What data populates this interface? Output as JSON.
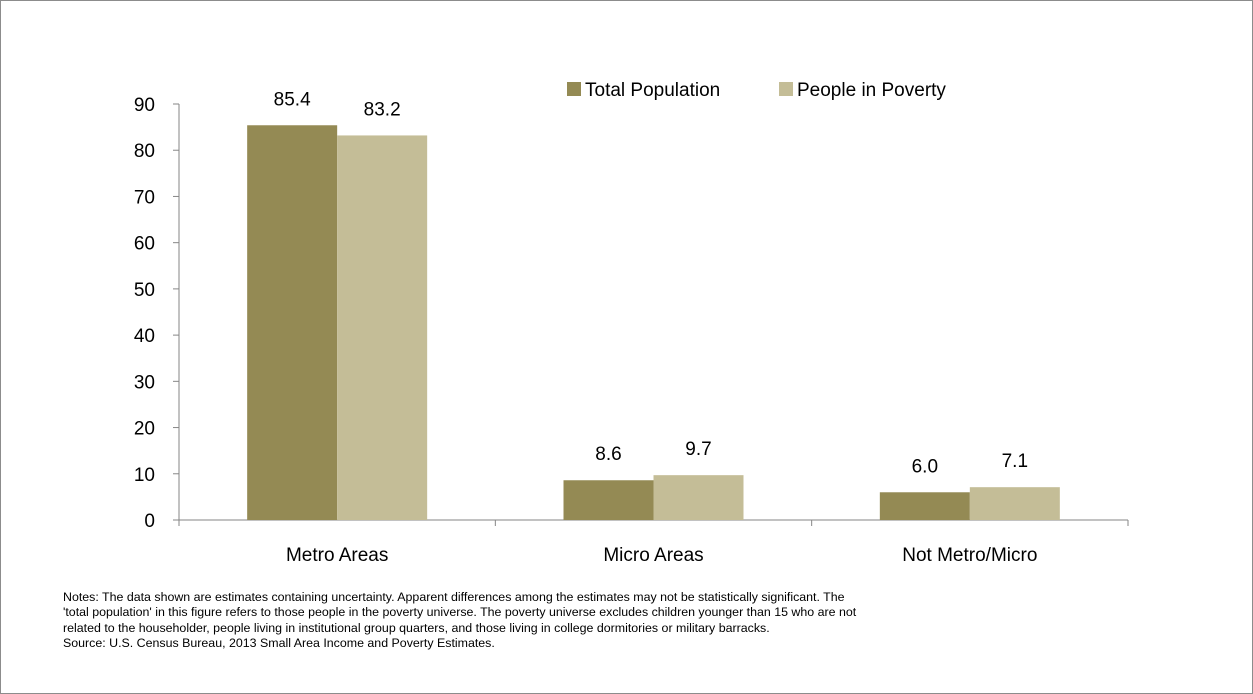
{
  "chart_data": {
    "type": "bar",
    "categories": [
      "Metro Areas",
      "Micro Areas",
      "Not Metro/Micro"
    ],
    "series": [
      {
        "name": "Total Population",
        "values": [
          85.4,
          8.6,
          6.0
        ],
        "labels": [
          "85.4",
          "8.6",
          "6.0"
        ],
        "color": "#948a54"
      },
      {
        "name": "People in Poverty",
        "values": [
          83.2,
          9.7,
          7.1
        ],
        "labels": [
          "83.2",
          "9.7",
          "7.1"
        ],
        "color": "#c4bd97"
      }
    ],
    "title": "",
    "xlabel": "",
    "ylabel": "",
    "ylim": [
      0,
      90
    ],
    "yticks": [
      0,
      10,
      20,
      30,
      40,
      50,
      60,
      70,
      80,
      90
    ],
    "grid": false,
    "legend_position": "top-right"
  },
  "notes": {
    "line1": "Notes: The data shown are estimates containing uncertainty.  Apparent differences among the estimates may not be statistically significant.   The",
    "line2": "'total population' in this figure refers to those people in the poverty universe. The poverty universe excludes children younger than 15 who are not",
    "line3": "related to the householder, people living in institutional group quarters, and those living in college dormitories or military barracks.",
    "line4": "Source: U.S. Census Bureau, 2013 Small Area Income and Poverty Estimates."
  }
}
